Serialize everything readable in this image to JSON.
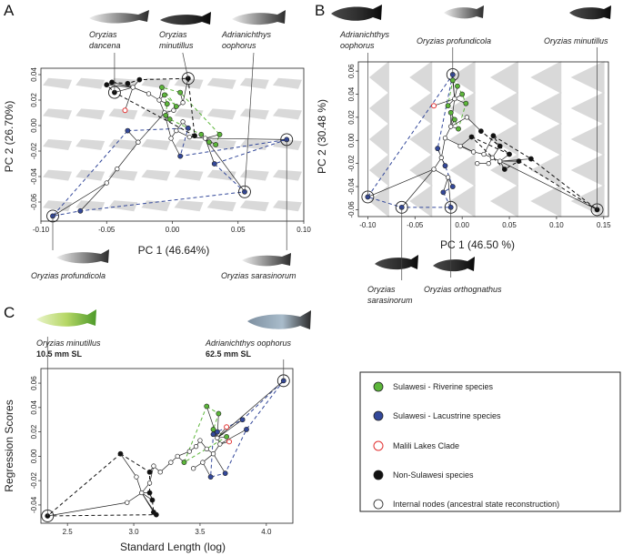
{
  "colors": {
    "riverine": "#5cb63a",
    "lacustrine": "#33489a",
    "malili": "#e23232",
    "non_sulawesi": "#111111",
    "internal": "#ffffff",
    "warp": "#d2d2d2"
  },
  "panels": {
    "a": {
      "letter": "A",
      "top_species": [
        {
          "line1": "Oryzias",
          "line2": "dancena"
        },
        {
          "line1": "Oryzias",
          "line2": "minutillus"
        },
        {
          "line1": "Adrianichthys",
          "line2": "oophorus"
        }
      ],
      "bottom_species": [
        {
          "line1": "Oryzias profundicola"
        },
        {
          "line1": "Oryzias sarasinorum"
        }
      ]
    },
    "b": {
      "letter": "B",
      "top_species": [
        {
          "line1": "Adrianichthys",
          "line2": "oophorus"
        },
        {
          "line1": "Oryzias profundicola"
        },
        {
          "line1": "Oryzias minutillus"
        }
      ],
      "bottom_species": [
        {
          "line1": "Oryzias",
          "line2": "sarasinorum"
        },
        {
          "line1": "Oryzias orthognathus"
        }
      ]
    },
    "c": {
      "letter": "C",
      "top_species": [
        {
          "line1": "Oryzias minutillus",
          "line2": "10.5 mm SL"
        },
        {
          "line1": "Adrianichthys oophorus",
          "line2": "62.5 mm SL"
        }
      ]
    }
  },
  "legend": {
    "items": [
      {
        "label": "Sulawesi - Riverine species",
        "color": "#5cb63a",
        "style": "filled"
      },
      {
        "label": "Sulawesi - Lacustrine species",
        "color": "#33489a",
        "style": "filled"
      },
      {
        "label": "Malili Lakes Clade",
        "color": "#e23232",
        "style": "ring"
      },
      {
        "label": "Non-Sulawesi species",
        "color": "#111111",
        "style": "filled"
      },
      {
        "label": "Internal nodes (ancestral state reconstruction)",
        "color": "#ffffff",
        "style": "open"
      }
    ]
  },
  "chart_data": [
    {
      "id": "a",
      "type": "scatter",
      "title": "",
      "xlabel": "PC 1 (46.64%)",
      "ylabel": "PC 2 (26.70%)",
      "xlim": [
        -0.1,
        0.1
      ],
      "ylim": [
        -0.075,
        0.045
      ],
      "xticks": [
        "-0.10",
        "-0.05",
        "0.00",
        "0.05",
        "0.10"
      ],
      "xtick_values": [
        -0.1,
        -0.05,
        0.0,
        0.05,
        0.1
      ],
      "yticks": [
        "-0.06",
        "-0.04",
        "-0.02",
        "0.00",
        "0.02",
        "0.04"
      ],
      "ytick_values": [
        -0.06,
        -0.04,
        -0.02,
        0.0,
        0.02,
        0.04
      ],
      "points": [
        {
          "x": -0.091,
          "y": -0.071,
          "g": "lacustrine",
          "ring": true
        },
        {
          "x": -0.07,
          "y": -0.067,
          "g": "lacustrine"
        },
        {
          "x": -0.044,
          "y": 0.026,
          "g": "non",
          "ring": true
        },
        {
          "x": -0.05,
          "y": 0.032,
          "g": "non"
        },
        {
          "x": -0.046,
          "y": 0.034,
          "g": "non"
        },
        {
          "x": -0.034,
          "y": 0.033,
          "g": "non"
        },
        {
          "x": -0.025,
          "y": 0.036,
          "g": "non"
        },
        {
          "x": -0.034,
          "y": -0.004,
          "g": "lacustrine"
        },
        {
          "x": -0.008,
          "y": 0.03,
          "g": "riverine"
        },
        {
          "x": -0.006,
          "y": 0.024,
          "g": "riverine"
        },
        {
          "x": -0.004,
          "y": 0.017,
          "g": "riverine"
        },
        {
          "x": -0.005,
          "y": 0.008,
          "g": "riverine"
        },
        {
          "x": -0.002,
          "y": 0.005,
          "g": "riverine"
        },
        {
          "x": 0.012,
          "y": 0.037,
          "g": "non",
          "ring": true
        },
        {
          "x": 0.006,
          "y": 0.026,
          "g": "riverine"
        },
        {
          "x": 0.003,
          "y": 0.015,
          "g": "riverine"
        },
        {
          "x": 0.012,
          "y": -0.002,
          "g": "lacustrine"
        },
        {
          "x": 0.017,
          "y": -0.008,
          "g": "non"
        },
        {
          "x": 0.022,
          "y": -0.007,
          "g": "riverine"
        },
        {
          "x": 0.028,
          "y": -0.013,
          "g": "riverine"
        },
        {
          "x": 0.033,
          "y": -0.015,
          "g": "riverine"
        },
        {
          "x": 0.036,
          "y": -0.007,
          "g": "riverine"
        },
        {
          "x": 0.006,
          "y": -0.024,
          "g": "lacustrine"
        },
        {
          "x": 0.032,
          "y": -0.03,
          "g": "lacustrine"
        },
        {
          "x": 0.055,
          "y": -0.052,
          "g": "lacustrine",
          "ring": true
        },
        {
          "x": 0.087,
          "y": -0.011,
          "g": "lacustrine",
          "ring": true
        },
        {
          "x": -0.036,
          "y": 0.012,
          "g": "malili"
        }
      ],
      "nodes": [
        {
          "x": -0.03,
          "y": 0.03
        },
        {
          "x": -0.018,
          "y": 0.025
        },
        {
          "x": -0.01,
          "y": 0.02
        },
        {
          "x": -0.006,
          "y": 0.01
        },
        {
          "x": -0.026,
          "y": -0.013
        },
        {
          "x": -0.042,
          "y": -0.034
        },
        {
          "x": -0.001,
          "y": -0.01
        },
        {
          "x": 0.003,
          "y": -0.004
        },
        {
          "x": 0.008,
          "y": 0.003
        },
        {
          "x": 0.013,
          "y": -0.009
        },
        {
          "x": 0.025,
          "y": -0.01
        },
        {
          "x": -0.05,
          "y": -0.045
        },
        {
          "x": 0.001,
          "y": 0.012
        },
        {
          "x": 0.008,
          "y": 0.018
        }
      ]
    },
    {
      "id": "b",
      "type": "scatter",
      "title": "",
      "xlabel": "PC 1 (46.50 %)",
      "ylabel": "PC 2 (30.48 %)",
      "xlim": [
        -0.11,
        0.155
      ],
      "ylim": [
        -0.066,
        0.068
      ],
      "xticks": [
        "-0.10",
        "-0.05",
        "0.00",
        "0.05",
        "0.10",
        "0.15"
      ],
      "xtick_values": [
        -0.1,
        -0.05,
        0.0,
        0.05,
        0.1,
        0.15
      ],
      "yticks": [
        "-0.06",
        "-0.04",
        "-0.02",
        "0.00",
        "0.02",
        "0.04",
        "0.06"
      ],
      "ytick_values": [
        -0.06,
        -0.04,
        -0.02,
        0.0,
        0.02,
        0.04,
        0.06
      ],
      "points": [
        {
          "x": -0.1,
          "y": -0.049,
          "g": "lacustrine",
          "ring": true
        },
        {
          "x": -0.064,
          "y": -0.058,
          "g": "lacustrine",
          "ring": true
        },
        {
          "x": -0.012,
          "y": -0.058,
          "g": "lacustrine",
          "ring": true
        },
        {
          "x": -0.01,
          "y": 0.057,
          "g": "lacustrine",
          "ring": true
        },
        {
          "x": 0.143,
          "y": -0.06,
          "g": "non",
          "ring": true
        },
        {
          "x": -0.01,
          "y": 0.052,
          "g": "riverine"
        },
        {
          "x": -0.005,
          "y": 0.047,
          "g": "riverine"
        },
        {
          "x": 0.0,
          "y": 0.04,
          "g": "riverine"
        },
        {
          "x": 0.004,
          "y": 0.032,
          "g": "riverine"
        },
        {
          "x": -0.015,
          "y": 0.03,
          "g": "riverine"
        },
        {
          "x": -0.012,
          "y": 0.024,
          "g": "riverine"
        },
        {
          "x": -0.008,
          "y": 0.018,
          "g": "riverine"
        },
        {
          "x": -0.004,
          "y": 0.01,
          "g": "riverine"
        },
        {
          "x": -0.026,
          "y": -0.007,
          "g": "lacustrine"
        },
        {
          "x": -0.018,
          "y": -0.022,
          "g": "lacustrine"
        },
        {
          "x": -0.02,
          "y": -0.045,
          "g": "lacustrine"
        },
        {
          "x": -0.01,
          "y": -0.04,
          "g": "lacustrine"
        },
        {
          "x": -0.03,
          "y": 0.03,
          "g": "malili"
        },
        {
          "x": 0.01,
          "y": 0.003,
          "g": "non"
        },
        {
          "x": 0.02,
          "y": 0.008,
          "g": "non"
        },
        {
          "x": 0.033,
          "y": 0.004,
          "g": "non"
        },
        {
          "x": 0.04,
          "y": -0.005,
          "g": "non"
        },
        {
          "x": 0.05,
          "y": -0.012,
          "g": "non"
        },
        {
          "x": 0.06,
          "y": -0.018,
          "g": "non"
        },
        {
          "x": 0.073,
          "y": -0.016,
          "g": "non"
        },
        {
          "x": 0.045,
          "y": -0.025,
          "g": "non"
        }
      ],
      "nodes": [
        {
          "x": -0.008,
          "y": 0.036
        },
        {
          "x": -0.012,
          "y": 0.012
        },
        {
          "x": -0.018,
          "y": 0.002
        },
        {
          "x": -0.022,
          "y": -0.015
        },
        {
          "x": -0.03,
          "y": -0.025
        },
        {
          "x": 0.012,
          "y": -0.01
        },
        {
          "x": 0.023,
          "y": -0.012
        },
        {
          "x": 0.032,
          "y": -0.015
        },
        {
          "x": 0.04,
          "y": -0.018
        },
        {
          "x": 0.028,
          "y": -0.02
        },
        {
          "x": -0.002,
          "y": -0.005
        },
        {
          "x": -0.015,
          "y": -0.032
        },
        {
          "x": 0.005,
          "y": 0.02
        },
        {
          "x": 0.016,
          "y": -0.02
        }
      ]
    },
    {
      "id": "c",
      "type": "scatter",
      "title": "",
      "xlabel": "Standard Length (log)",
      "ylabel": "Regression Scores",
      "xlim": [
        2.3,
        4.2
      ],
      "ylim": [
        -0.055,
        0.072
      ],
      "xticks": [
        "2.5",
        "3.0",
        "3.5",
        "4.0"
      ],
      "xtick_values": [
        2.5,
        3.0,
        3.5,
        4.0
      ],
      "yticks": [
        "-0.04",
        "-0.02",
        "0.00",
        "0.02",
        "0.04",
        "0.06"
      ],
      "ytick_values": [
        -0.04,
        -0.02,
        0.0,
        0.02,
        0.04,
        0.06
      ],
      "points": [
        {
          "x": 2.35,
          "y": -0.049,
          "g": "non",
          "ring": true
        },
        {
          "x": 4.13,
          "y": 0.062,
          "g": "lacustrine",
          "ring": true
        },
        {
          "x": 2.9,
          "y": 0.002,
          "g": "non"
        },
        {
          "x": 3.12,
          "y": -0.013,
          "g": "non"
        },
        {
          "x": 3.12,
          "y": -0.03,
          "g": "non"
        },
        {
          "x": 3.14,
          "y": -0.036,
          "g": "non"
        },
        {
          "x": 3.15,
          "y": -0.046,
          "g": "non"
        },
        {
          "x": 3.17,
          "y": -0.048,
          "g": "non"
        },
        {
          "x": 3.38,
          "y": -0.005,
          "g": "riverine"
        },
        {
          "x": 3.55,
          "y": 0.041,
          "g": "riverine"
        },
        {
          "x": 3.6,
          "y": 0.022,
          "g": "riverine"
        },
        {
          "x": 3.64,
          "y": 0.035,
          "g": "riverine"
        },
        {
          "x": 3.7,
          "y": 0.016,
          "g": "riverine"
        },
        {
          "x": 3.6,
          "y": 0.018,
          "g": "lacustrine"
        },
        {
          "x": 3.63,
          "y": 0.02,
          "g": "lacustrine"
        },
        {
          "x": 3.82,
          "y": 0.03,
          "g": "lacustrine"
        },
        {
          "x": 3.85,
          "y": 0.022,
          "g": "lacustrine"
        },
        {
          "x": 3.58,
          "y": -0.017,
          "g": "lacustrine"
        },
        {
          "x": 3.69,
          "y": -0.014,
          "g": "lacustrine"
        },
        {
          "x": 3.7,
          "y": 0.024,
          "g": "malili"
        },
        {
          "x": 3.72,
          "y": 0.012,
          "g": "malili"
        }
      ],
      "nodes": [
        {
          "x": 3.02,
          "y": -0.017
        },
        {
          "x": 3.06,
          "y": -0.03
        },
        {
          "x": 3.12,
          "y": -0.022
        },
        {
          "x": 3.15,
          "y": -0.008
        },
        {
          "x": 3.2,
          "y": -0.013
        },
        {
          "x": 3.28,
          "y": -0.005
        },
        {
          "x": 3.33,
          "y": 0.0
        },
        {
          "x": 3.42,
          "y": 0.004
        },
        {
          "x": 3.47,
          "y": 0.008
        },
        {
          "x": 3.5,
          "y": 0.013
        },
        {
          "x": 3.55,
          "y": 0.006
        },
        {
          "x": 3.6,
          "y": 0.002
        },
        {
          "x": 3.65,
          "y": 0.01
        },
        {
          "x": 3.52,
          "y": -0.005
        },
        {
          "x": 3.45,
          "y": -0.01
        },
        {
          "x": 3.63,
          "y": 0.015
        },
        {
          "x": 2.95,
          "y": -0.038
        }
      ]
    }
  ]
}
